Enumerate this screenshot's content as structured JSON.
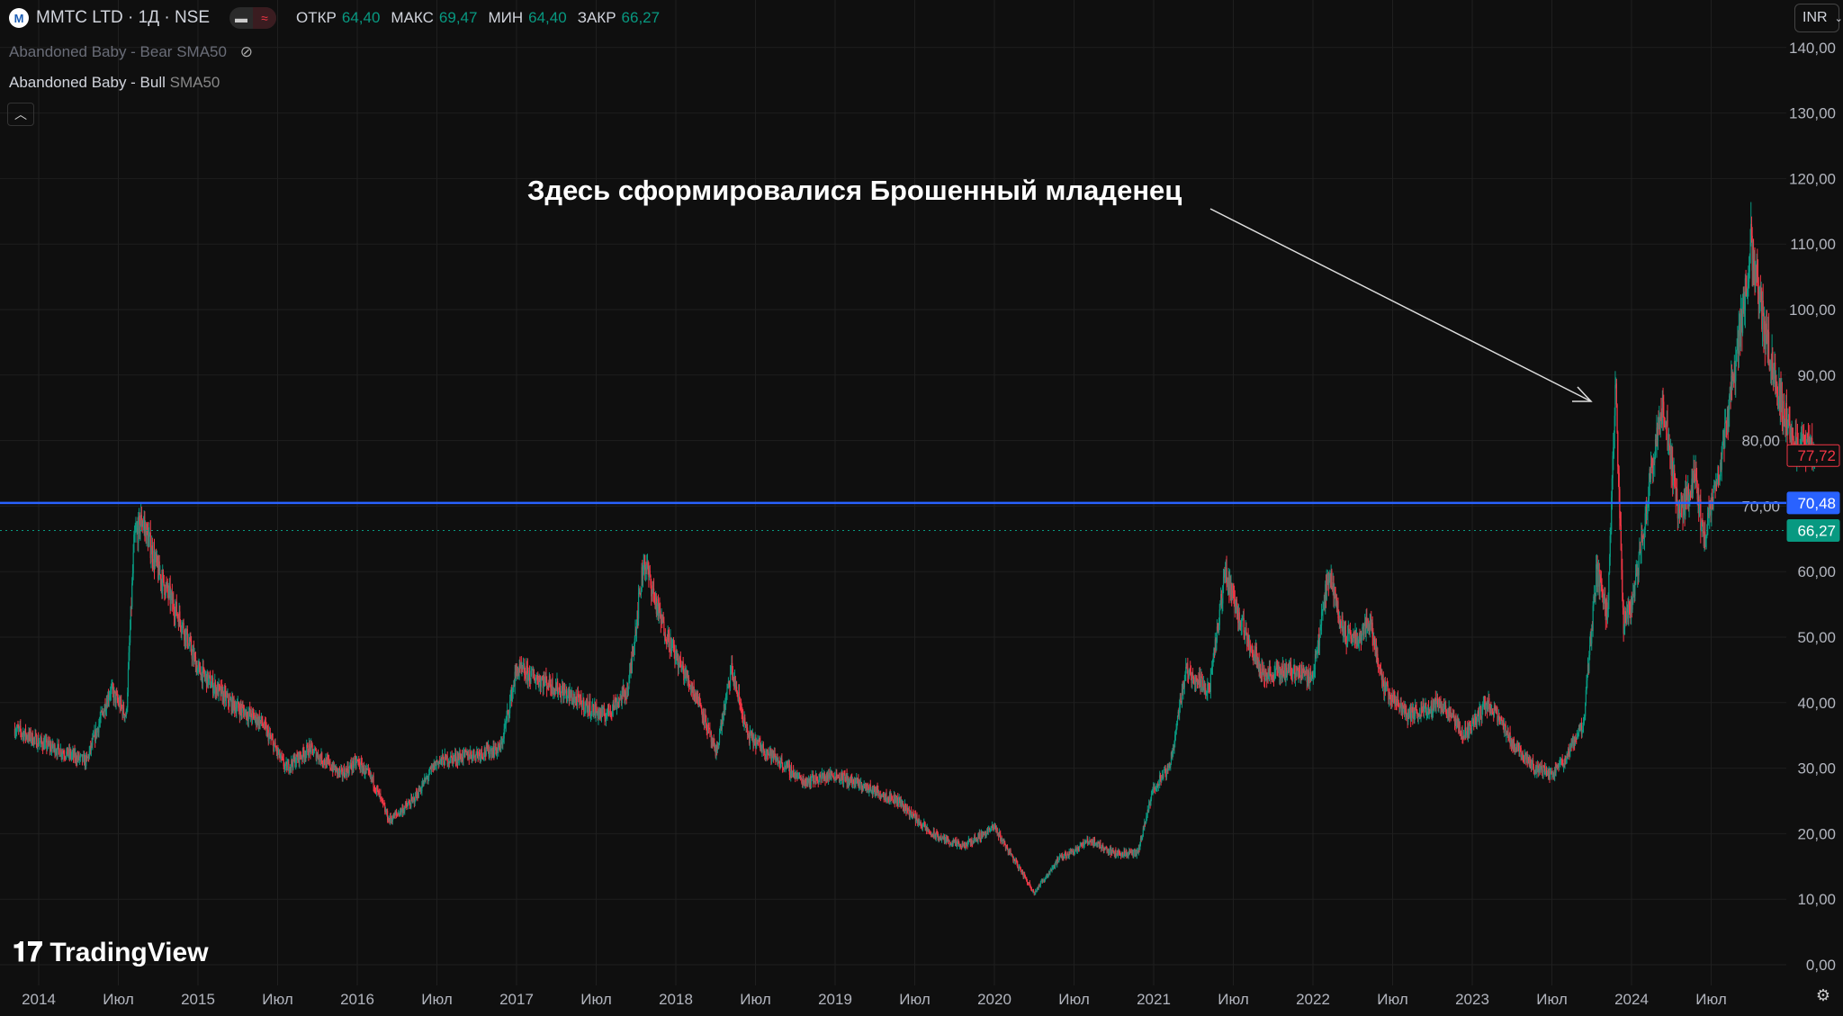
{
  "header": {
    "symbol": "MMTC LTD · 1Д · NSE",
    "open_label": "ОТКР",
    "open": "64,40",
    "high_label": "МАКС",
    "high": "69,47",
    "low_label": "МИН",
    "low": "64,40",
    "close_label": "ЗАКР",
    "close": "66,27"
  },
  "indicators": [
    {
      "name": "Abandoned Baby - Bear",
      "param": "SMA50",
      "hidden": true
    },
    {
      "name": "Abandoned Baby - Bull",
      "param": "SMA50",
      "hidden": false
    }
  ],
  "currency": "INR",
  "annotation": "Здесь сформировалися Брошенный младенец",
  "brand": "TradingView",
  "colors": {
    "up": "#089981",
    "down": "#f23645",
    "hline": "#2962ff",
    "bg": "#0f0f0f"
  },
  "chart_data": {
    "type": "candlestick",
    "y_ticks": [
      "0,00",
      "10,00",
      "20,00",
      "30,00",
      "40,00",
      "50,00",
      "60,00",
      "70,00",
      "80,00",
      "90,00",
      "100,00",
      "110,00",
      "120,00",
      "130,00",
      "140,00"
    ],
    "ylim": [
      0,
      140
    ],
    "x_ticks": [
      {
        "t": 2014,
        "label": "2014"
      },
      {
        "t": 2014.5,
        "label": "Июл"
      },
      {
        "t": 2015,
        "label": "2015"
      },
      {
        "t": 2015.5,
        "label": "Июл"
      },
      {
        "t": 2016,
        "label": "2016"
      },
      {
        "t": 2016.5,
        "label": "Июл"
      },
      {
        "t": 2017,
        "label": "2017"
      },
      {
        "t": 2017.5,
        "label": "Июл"
      },
      {
        "t": 2018,
        "label": "2018"
      },
      {
        "t": 2018.5,
        "label": "Июл"
      },
      {
        "t": 2019,
        "label": "2019"
      },
      {
        "t": 2019.5,
        "label": "Июл"
      },
      {
        "t": 2020,
        "label": "2020"
      },
      {
        "t": 2020.5,
        "label": "Июл"
      },
      {
        "t": 2021,
        "label": "2021"
      },
      {
        "t": 2021.5,
        "label": "Июл"
      },
      {
        "t": 2022,
        "label": "2022"
      },
      {
        "t": 2022.5,
        "label": "Июл"
      },
      {
        "t": 2023,
        "label": "2023"
      },
      {
        "t": 2023.5,
        "label": "Июл"
      },
      {
        "t": 2024,
        "label": "2024"
      },
      {
        "t": 2024.5,
        "label": "Июл"
      }
    ],
    "price_path": [
      [
        2013.85,
        36
      ],
      [
        2014.0,
        34
      ],
      [
        2014.3,
        31
      ],
      [
        2014.45,
        42
      ],
      [
        2014.55,
        38
      ],
      [
        2014.6,
        65
      ],
      [
        2014.65,
        68
      ],
      [
        2014.75,
        60
      ],
      [
        2014.9,
        52
      ],
      [
        2015.0,
        45
      ],
      [
        2015.2,
        40
      ],
      [
        2015.4,
        37
      ],
      [
        2015.55,
        30
      ],
      [
        2015.7,
        33
      ],
      [
        2015.9,
        29
      ],
      [
        2016.0,
        31
      ],
      [
        2016.1,
        28
      ],
      [
        2016.2,
        22
      ],
      [
        2016.35,
        25
      ],
      [
        2016.5,
        31
      ],
      [
        2016.7,
        32
      ],
      [
        2016.9,
        33
      ],
      [
        2017.0,
        45
      ],
      [
        2017.2,
        43
      ],
      [
        2017.4,
        40
      ],
      [
        2017.55,
        38
      ],
      [
        2017.7,
        42
      ],
      [
        2017.8,
        62
      ],
      [
        2017.9,
        53
      ],
      [
        2018.0,
        47
      ],
      [
        2018.15,
        40
      ],
      [
        2018.25,
        32
      ],
      [
        2018.35,
        45
      ],
      [
        2018.45,
        35
      ],
      [
        2018.6,
        32
      ],
      [
        2018.8,
        28
      ],
      [
        2019.0,
        29
      ],
      [
        2019.2,
        27
      ],
      [
        2019.4,
        25
      ],
      [
        2019.6,
        20
      ],
      [
        2019.8,
        18
      ],
      [
        2020.0,
        21
      ],
      [
        2020.1,
        17
      ],
      [
        2020.25,
        11
      ],
      [
        2020.4,
        16
      ],
      [
        2020.6,
        19
      ],
      [
        2020.75,
        17
      ],
      [
        2020.9,
        17
      ],
      [
        2021.0,
        27
      ],
      [
        2021.1,
        30
      ],
      [
        2021.2,
        45
      ],
      [
        2021.35,
        42
      ],
      [
        2021.45,
        60
      ],
      [
        2021.55,
        52
      ],
      [
        2021.7,
        44
      ],
      [
        2021.85,
        45
      ],
      [
        2022.0,
        44
      ],
      [
        2022.1,
        60
      ],
      [
        2022.2,
        50
      ],
      [
        2022.3,
        50
      ],
      [
        2022.35,
        53
      ],
      [
        2022.45,
        42
      ],
      [
        2022.6,
        38
      ],
      [
        2022.8,
        40
      ],
      [
        2022.95,
        35
      ],
      [
        2023.1,
        40
      ],
      [
        2023.25,
        34
      ],
      [
        2023.4,
        30
      ],
      [
        2023.5,
        29
      ],
      [
        2023.6,
        32
      ],
      [
        2023.7,
        37
      ],
      [
        2023.78,
        60
      ],
      [
        2023.85,
        53
      ],
      [
        2023.9,
        88
      ],
      [
        2023.95,
        52
      ],
      [
        2024.0,
        55
      ],
      [
        2024.05,
        62
      ],
      [
        2024.15,
        80
      ],
      [
        2024.2,
        85
      ],
      [
        2024.3,
        68
      ],
      [
        2024.4,
        75
      ],
      [
        2024.45,
        65
      ],
      [
        2024.55,
        75
      ],
      [
        2024.7,
        100
      ],
      [
        2024.75,
        110
      ],
      [
        2024.85,
        95
      ],
      [
        2024.95,
        85
      ],
      [
        2025.05,
        78
      ],
      [
        2025.1,
        80
      ],
      [
        2025.15,
        77.72
      ]
    ],
    "hline": {
      "value": 70.48,
      "label": "70,48"
    },
    "last_price": {
      "value": 77.72,
      "label": "77,72"
    },
    "close_line": {
      "value": 66.27,
      "label": "66,27"
    }
  }
}
